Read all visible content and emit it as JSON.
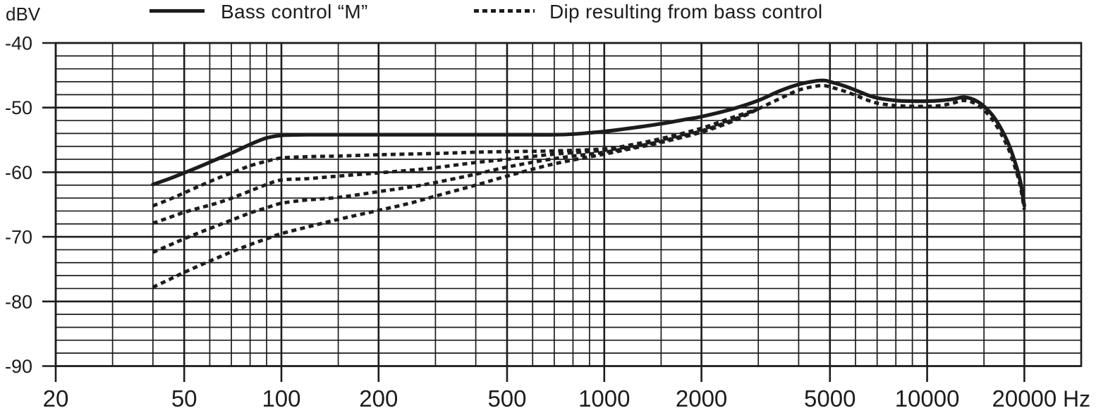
{
  "chart_data": {
    "type": "line",
    "title": "",
    "x_scale": "log",
    "xlabel_unit": "Hz",
    "ylabel_unit": "dBV",
    "xlim_hz": [
      20,
      30000
    ],
    "ylim_dbv": [
      -90,
      -40
    ],
    "grid": true,
    "y_minor_step_db": 2,
    "y_major_ticks": [
      {
        "value": -40,
        "label": "-40"
      },
      {
        "value": -50,
        "label": "-50"
      },
      {
        "value": -60,
        "label": "-60"
      },
      {
        "value": -70,
        "label": "-70"
      },
      {
        "value": -80,
        "label": "-80"
      },
      {
        "value": -90,
        "label": "-90"
      }
    ],
    "x_major_ticks": [
      {
        "hz": 20,
        "label": "20"
      },
      {
        "hz": 50,
        "label": "50"
      },
      {
        "hz": 100,
        "label": "100"
      },
      {
        "hz": 200,
        "label": "200"
      },
      {
        "hz": 500,
        "label": "500"
      },
      {
        "hz": 1000,
        "label": "1000"
      },
      {
        "hz": 2000,
        "label": "2000"
      },
      {
        "hz": 5000,
        "label": "5000"
      },
      {
        "hz": 10000,
        "label": "10000"
      },
      {
        "hz": 20000,
        "label": "20000"
      }
    ],
    "x_minor_gridlines_hz": [
      30,
      40,
      60,
      70,
      80,
      90,
      150,
      300,
      400,
      600,
      700,
      800,
      900,
      1500,
      3000,
      4000,
      6000,
      7000,
      8000,
      9000,
      15000
    ],
    "legend": [
      {
        "id": "bass-control-m",
        "label": "Bass control “M”",
        "line_style": "solid"
      },
      {
        "id": "dip-from-bass-control",
        "label": "Dip resulting from bass control",
        "line_style": "dotted"
      }
    ],
    "series": [
      {
        "id": "bass_control_m",
        "name": "Bass control “M”",
        "style": "solid",
        "points_hz_dbv": [
          [
            40,
            -61.9
          ],
          [
            45,
            -61.0
          ],
          [
            50,
            -60.1
          ],
          [
            56,
            -59.1
          ],
          [
            63,
            -58.0
          ],
          [
            71,
            -56.9
          ],
          [
            80,
            -55.7
          ],
          [
            90,
            -54.7
          ],
          [
            100,
            -54.3
          ],
          [
            120,
            -54.2
          ],
          [
            150,
            -54.2
          ],
          [
            200,
            -54.2
          ],
          [
            250,
            -54.2
          ],
          [
            300,
            -54.2
          ],
          [
            400,
            -54.2
          ],
          [
            500,
            -54.2
          ],
          [
            600,
            -54.2
          ],
          [
            700,
            -54.2
          ],
          [
            800,
            -54.1
          ],
          [
            900,
            -53.9
          ],
          [
            1000,
            -53.7
          ],
          [
            1200,
            -53.2
          ],
          [
            1500,
            -52.5
          ],
          [
            1800,
            -51.8
          ],
          [
            2000,
            -51.4
          ],
          [
            2500,
            -50.2
          ],
          [
            3000,
            -48.9
          ],
          [
            3500,
            -47.4
          ],
          [
            4000,
            -46.4
          ],
          [
            4500,
            -45.9
          ],
          [
            4800,
            -45.8
          ],
          [
            5000,
            -46.0
          ],
          [
            5500,
            -46.6
          ],
          [
            6000,
            -47.3
          ],
          [
            6500,
            -48.0
          ],
          [
            7000,
            -48.5
          ],
          [
            8000,
            -48.9
          ],
          [
            9000,
            -49.0
          ],
          [
            10000,
            -49.0
          ],
          [
            11000,
            -48.9
          ],
          [
            12000,
            -48.7
          ],
          [
            13000,
            -48.4
          ],
          [
            14000,
            -48.8
          ],
          [
            15000,
            -49.8
          ],
          [
            16000,
            -51.3
          ],
          [
            17000,
            -53.4
          ],
          [
            18000,
            -56.0
          ],
          [
            19000,
            -59.5
          ],
          [
            19500,
            -61.8
          ],
          [
            20000,
            -65.2
          ]
        ]
      },
      {
        "id": "dip_1",
        "name": "Dip resulting from bass control (setting 1)",
        "style": "dotted",
        "points_hz_dbv": [
          [
            40,
            -65.2
          ],
          [
            45,
            -64.2
          ],
          [
            50,
            -63.2
          ],
          [
            56,
            -62.1
          ],
          [
            63,
            -61.0
          ],
          [
            71,
            -60.0
          ],
          [
            80,
            -59.0
          ],
          [
            90,
            -58.3
          ],
          [
            100,
            -57.8
          ],
          [
            120,
            -57.6
          ],
          [
            150,
            -57.5
          ],
          [
            200,
            -57.3
          ],
          [
            300,
            -57.1
          ],
          [
            400,
            -56.9
          ],
          [
            500,
            -56.8
          ],
          [
            700,
            -56.7
          ],
          [
            1000,
            -56.4
          ],
          [
            1200,
            -55.8
          ],
          [
            1500,
            -54.8
          ],
          [
            2000,
            -53.2
          ],
          [
            2500,
            -51.5
          ],
          [
            3000,
            -50.2
          ]
        ]
      },
      {
        "id": "dip_2",
        "name": "Dip resulting from bass control (setting 2)",
        "style": "dotted",
        "points_hz_dbv": [
          [
            40,
            -67.9
          ],
          [
            45,
            -67.0
          ],
          [
            50,
            -66.2
          ],
          [
            56,
            -65.5
          ],
          [
            63,
            -64.8
          ],
          [
            71,
            -63.9
          ],
          [
            80,
            -62.9
          ],
          [
            90,
            -61.9
          ],
          [
            100,
            -61.2
          ],
          [
            120,
            -61.0
          ],
          [
            150,
            -60.6
          ],
          [
            200,
            -60.1
          ],
          [
            250,
            -59.7
          ],
          [
            300,
            -59.3
          ],
          [
            400,
            -58.5
          ],
          [
            500,
            -58.0
          ],
          [
            700,
            -57.2
          ],
          [
            1000,
            -56.6
          ],
          [
            1200,
            -56.0
          ],
          [
            1500,
            -55.0
          ],
          [
            2000,
            -53.4
          ],
          [
            2500,
            -51.7
          ],
          [
            3000,
            -50.2
          ]
        ]
      },
      {
        "id": "dip_3",
        "name": "Dip resulting from bass control (setting 3)",
        "style": "dotted",
        "points_hz_dbv": [
          [
            40,
            -72.4
          ],
          [
            45,
            -71.3
          ],
          [
            50,
            -70.3
          ],
          [
            56,
            -69.3
          ],
          [
            63,
            -68.3
          ],
          [
            71,
            -67.3
          ],
          [
            80,
            -66.3
          ],
          [
            90,
            -65.5
          ],
          [
            100,
            -64.8
          ],
          [
            120,
            -64.3
          ],
          [
            150,
            -63.9
          ],
          [
            200,
            -63.0
          ],
          [
            250,
            -62.3
          ],
          [
            300,
            -61.6
          ],
          [
            400,
            -60.3
          ],
          [
            500,
            -59.2
          ],
          [
            700,
            -57.9
          ],
          [
            1000,
            -56.9
          ],
          [
            1200,
            -56.2
          ],
          [
            1500,
            -55.2
          ],
          [
            2000,
            -53.6
          ],
          [
            2500,
            -51.9
          ],
          [
            3000,
            -50.2
          ]
        ]
      },
      {
        "id": "dip_4",
        "name": "Dip resulting from bass control (setting 4)",
        "style": "dotted",
        "points_hz_dbv": [
          [
            40,
            -77.8
          ],
          [
            45,
            -76.6
          ],
          [
            50,
            -75.5
          ],
          [
            56,
            -74.4
          ],
          [
            63,
            -73.3
          ],
          [
            71,
            -72.2
          ],
          [
            80,
            -71.2
          ],
          [
            90,
            -70.3
          ],
          [
            100,
            -69.5
          ],
          [
            120,
            -68.5
          ],
          [
            150,
            -67.3
          ],
          [
            200,
            -65.9
          ],
          [
            250,
            -64.8
          ],
          [
            300,
            -63.7
          ],
          [
            400,
            -62.0
          ],
          [
            500,
            -60.6
          ],
          [
            700,
            -58.7
          ],
          [
            1000,
            -57.2
          ],
          [
            1200,
            -56.4
          ],
          [
            1500,
            -55.4
          ],
          [
            2000,
            -53.8
          ],
          [
            2500,
            -52.1
          ],
          [
            3000,
            -50.2
          ]
        ]
      },
      {
        "id": "dip_merged",
        "name": "Dip resulting from bass control (merged section above 3 kHz)",
        "style": "dotted",
        "points_hz_dbv": [
          [
            3000,
            -50.2
          ],
          [
            3500,
            -48.6
          ],
          [
            4000,
            -47.3
          ],
          [
            4500,
            -46.7
          ],
          [
            4800,
            -46.6
          ],
          [
            5000,
            -46.8
          ],
          [
            5500,
            -47.4
          ],
          [
            6000,
            -48.1
          ],
          [
            6500,
            -48.8
          ],
          [
            7000,
            -49.3
          ],
          [
            8000,
            -49.7
          ],
          [
            9000,
            -49.8
          ],
          [
            10000,
            -49.8
          ],
          [
            11000,
            -49.7
          ],
          [
            12000,
            -49.3
          ],
          [
            13000,
            -48.9
          ],
          [
            14000,
            -49.3
          ],
          [
            15000,
            -50.4
          ],
          [
            16000,
            -52.0
          ],
          [
            17000,
            -54.2
          ],
          [
            18000,
            -56.8
          ],
          [
            19000,
            -60.3
          ],
          [
            19500,
            -62.6
          ],
          [
            20000,
            -65.8
          ]
        ]
      }
    ],
    "colors": {
      "ink": "#1c1c1c",
      "background": "#ffffff"
    }
  }
}
